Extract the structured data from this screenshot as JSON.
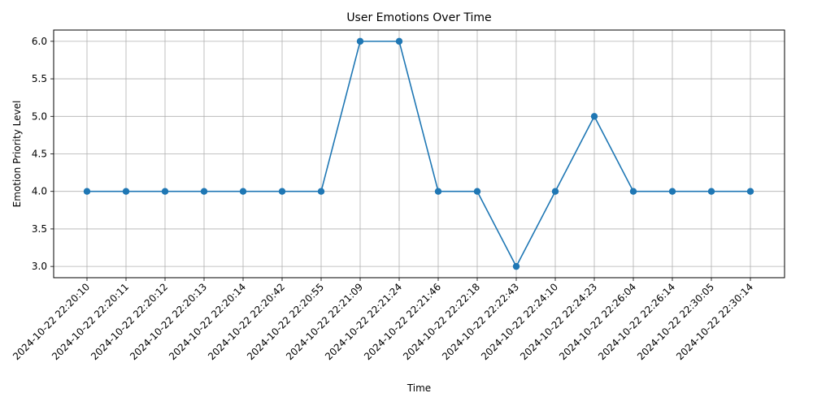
{
  "chart_data": {
    "type": "line",
    "title": "User Emotions Over Time",
    "xlabel": "Time",
    "ylabel": "Emotion Priority Level",
    "categories": [
      "2024-10-22 22:20:10",
      "2024-10-22 22:20:11",
      "2024-10-22 22:20:12",
      "2024-10-22 22:20:13",
      "2024-10-22 22:20:14",
      "2024-10-22 22:20:42",
      "2024-10-22 22:20:55",
      "2024-10-22 22:21:09",
      "2024-10-22 22:21:24",
      "2024-10-22 22:21:46",
      "2024-10-22 22:22:18",
      "2024-10-22 22:22:43",
      "2024-10-22 22:24:10",
      "2024-10-22 22:24:23",
      "2024-10-22 22:26:04",
      "2024-10-22 22:26:14",
      "2024-10-22 22:30:05",
      "2024-10-22 22:30:14"
    ],
    "series": [
      {
        "values": [
          4,
          4,
          4,
          4,
          4,
          4,
          4,
          6,
          6,
          4,
          4,
          3,
          4,
          5,
          4,
          4,
          4,
          4
        ]
      }
    ],
    "ylim": [
      2.85,
      6.15
    ],
    "yticks": [
      "3.0",
      "3.5",
      "4.0",
      "4.5",
      "5.0",
      "5.5",
      "6.0"
    ],
    "grid": true,
    "legend": "none",
    "colors": {
      "line": "#1f77b4",
      "grid": "#b0b0b0",
      "axis": "#000000"
    }
  }
}
